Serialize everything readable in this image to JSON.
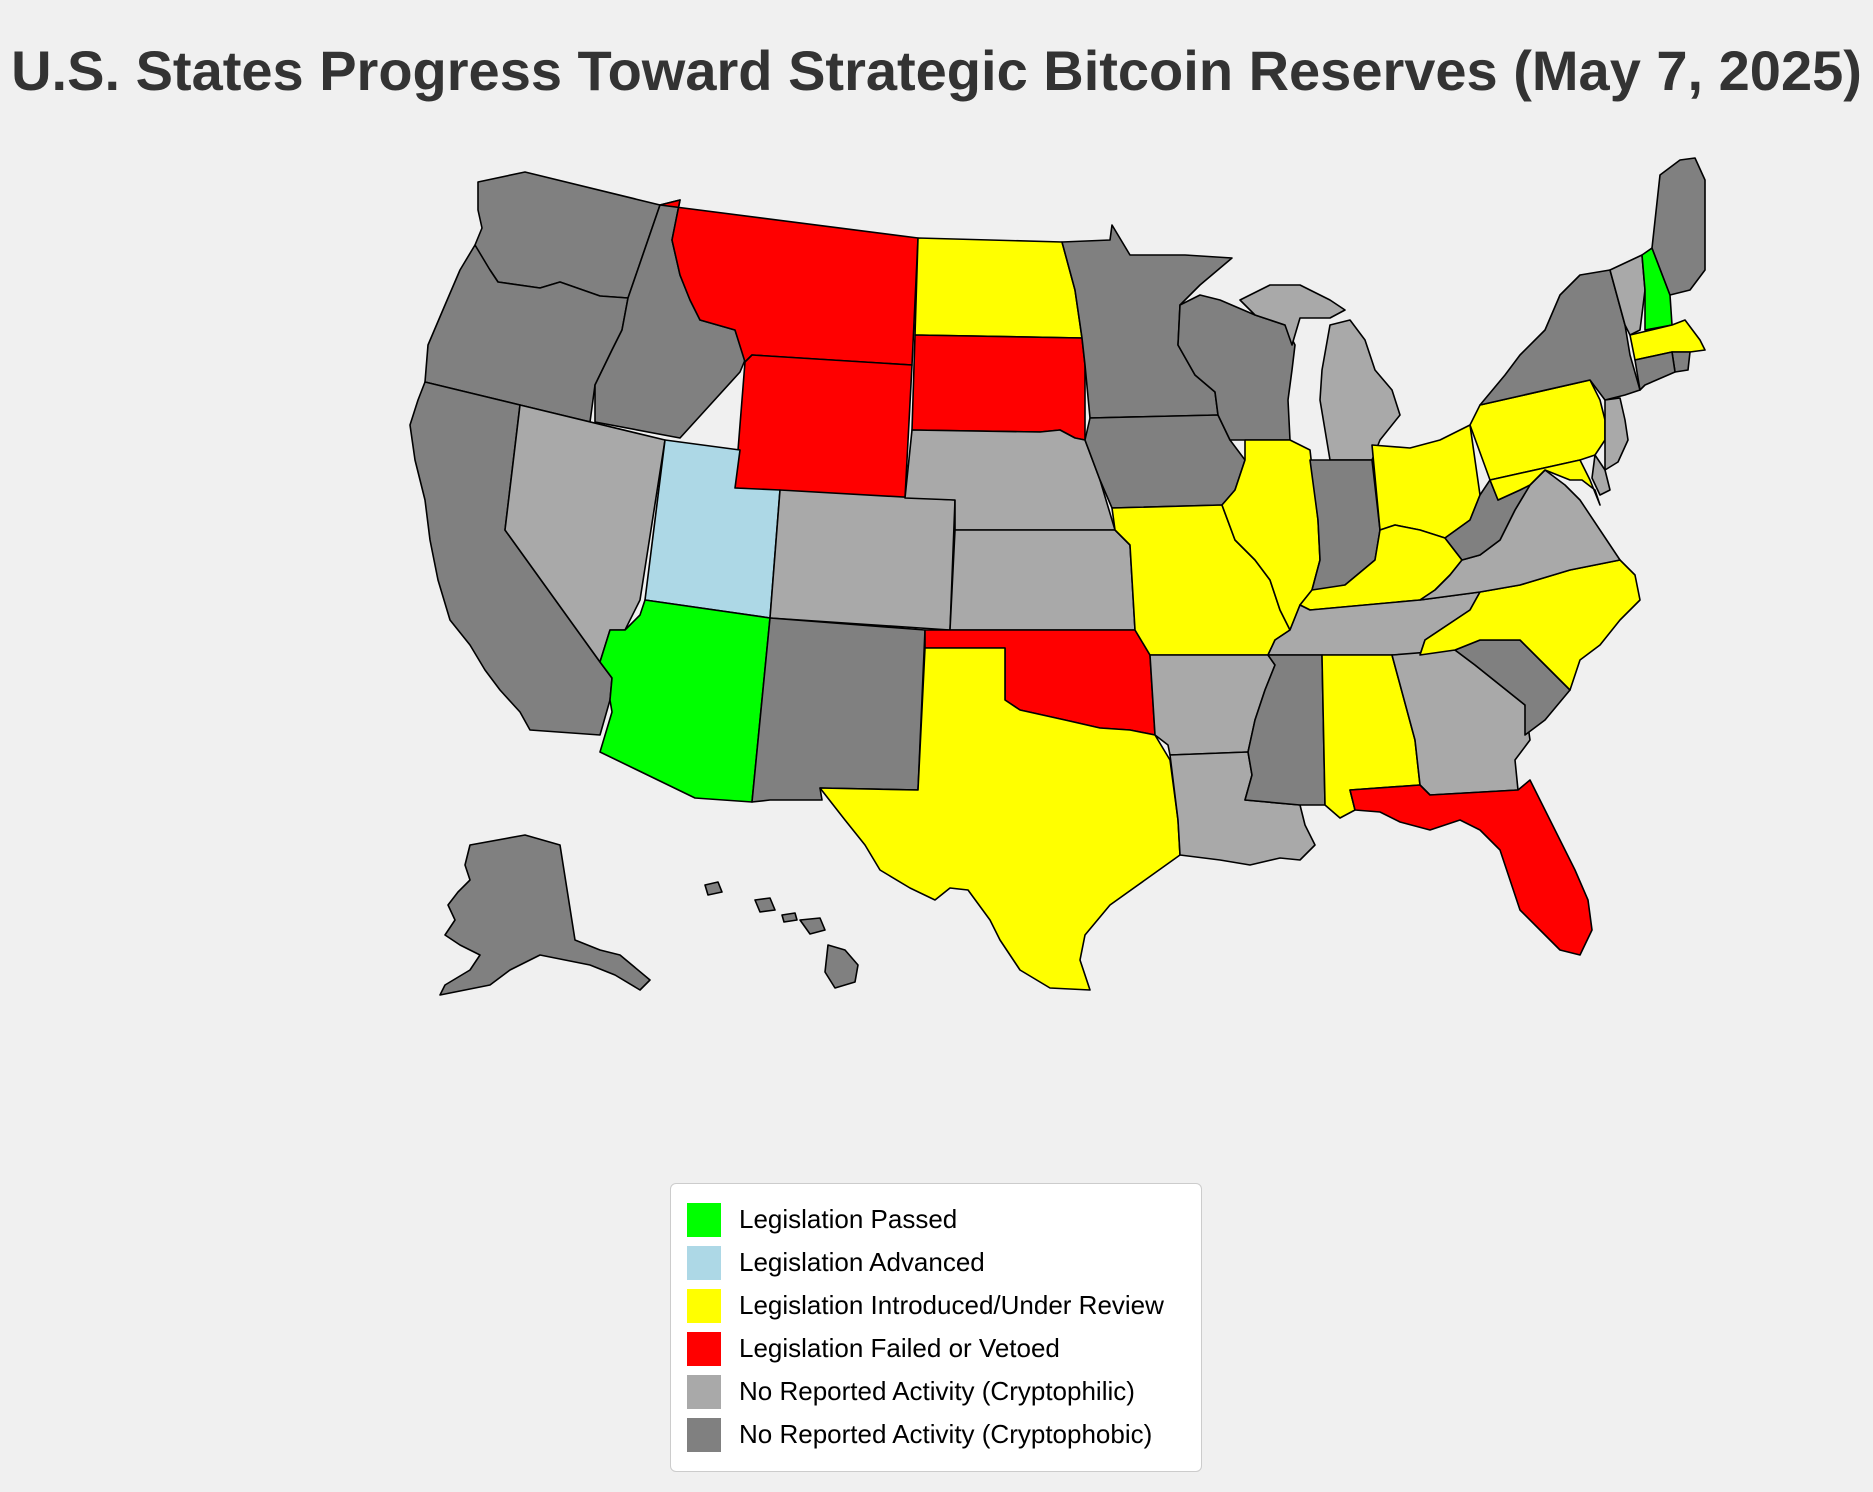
{
  "title": "U.S. States Progress Toward Strategic Bitcoin Reserves (May 7, 2025)",
  "categories": {
    "passed": {
      "label": "Legislation Passed",
      "color": "#00ff00"
    },
    "advanced": {
      "label": "Legislation Advanced",
      "color": "#add8e6"
    },
    "introduced": {
      "label": "Legislation Introduced/Under Review",
      "color": "#ffff00"
    },
    "failed": {
      "label": "Legislation Failed or Vetoed",
      "color": "#ff0000"
    },
    "cryptophilic": {
      "label": "No Reported Activity (Cryptophilic)",
      "color": "#a9a9a9"
    },
    "cryptophobic": {
      "label": "No Reported Activity (Cryptophobic)",
      "color": "#808080"
    }
  },
  "legend_order": [
    "passed",
    "advanced",
    "introduced",
    "failed",
    "cryptophilic",
    "cryptophobic"
  ],
  "states": {
    "AL": "introduced",
    "AK": "cryptophobic",
    "AZ": "passed",
    "AR": "cryptophilic",
    "CA": "cryptophobic",
    "CO": "cryptophilic",
    "CT": "cryptophobic",
    "DE": "cryptophilic",
    "FL": "failed",
    "GA": "cryptophilic",
    "HI": "cryptophobic",
    "ID": "cryptophobic",
    "IL": "introduced",
    "IN": "cryptophobic",
    "IA": "cryptophobic",
    "KS": "cryptophilic",
    "KY": "introduced",
    "LA": "cryptophilic",
    "ME": "cryptophobic",
    "MD": "introduced",
    "MA": "introduced",
    "MI": "cryptophilic",
    "MN": "cryptophobic",
    "MS": "cryptophobic",
    "MO": "introduced",
    "MT": "failed",
    "NE": "cryptophilic",
    "NV": "cryptophilic",
    "NH": "passed",
    "NJ": "cryptophilic",
    "NM": "cryptophobic",
    "NY": "cryptophobic",
    "NC": "introduced",
    "ND": "introduced",
    "OH": "introduced",
    "OK": "failed",
    "OR": "cryptophobic",
    "PA": "introduced",
    "RI": "cryptophobic",
    "SC": "cryptophobic",
    "SD": "failed",
    "TN": "cryptophilic",
    "TX": "introduced",
    "UT": "advanced",
    "VT": "cryptophilic",
    "VA": "cryptophilic",
    "WA": "cryptophobic",
    "WV": "cryptophobic",
    "WI": "cryptophobic",
    "WY": "failed"
  }
}
